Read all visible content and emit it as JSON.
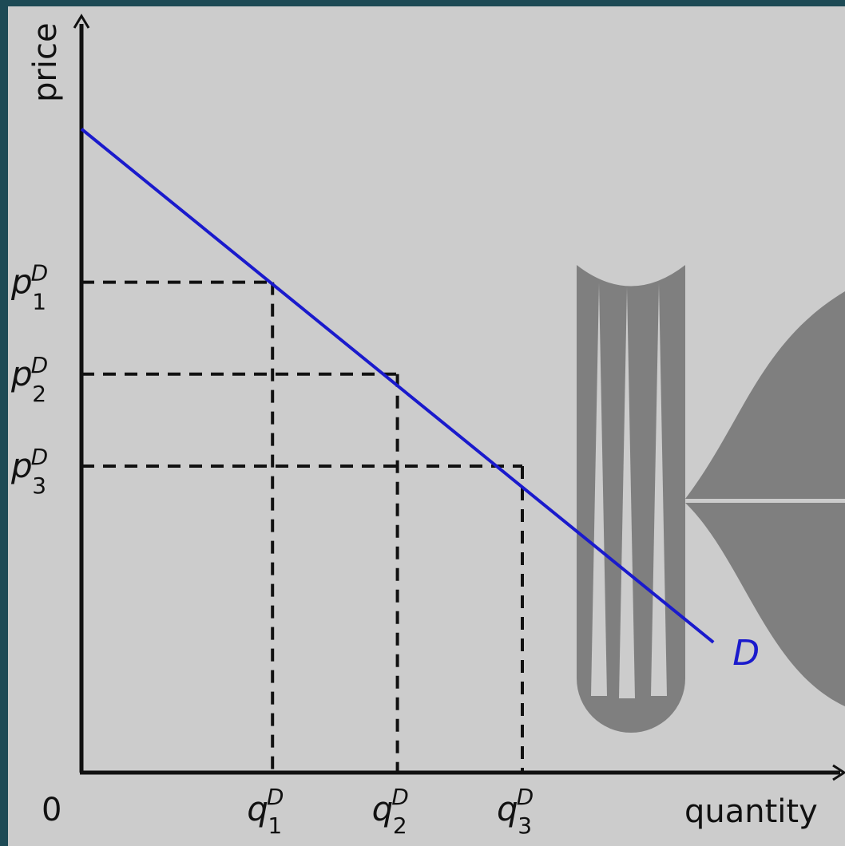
{
  "chart_data": {
    "type": "line",
    "xlabel": "quantity",
    "ylabel": "price",
    "origin_label": "0",
    "xlim": [
      0,
      1
    ],
    "ylim": [
      0,
      1
    ],
    "series": [
      {
        "name": "D",
        "x": [
          0,
          0.86
        ],
        "y": [
          0.84,
          0.17
        ],
        "color": "#1a1acc"
      }
    ],
    "reference_points": [
      {
        "x": 0.26,
        "y": 0.64,
        "x_label": {
          "base": "q",
          "sub": "1",
          "sup": "D"
        },
        "y_label": {
          "base": "p",
          "sub": "1",
          "sup": "D"
        }
      },
      {
        "x": 0.43,
        "y": 0.52,
        "x_label": {
          "base": "q",
          "sub": "2",
          "sup": "D"
        },
        "y_label": {
          "base": "p",
          "sub": "2",
          "sup": "D"
        }
      },
      {
        "x": 0.6,
        "y": 0.4,
        "x_label": {
          "base": "q",
          "sub": "3",
          "sup": "D"
        },
        "y_label": {
          "base": "p",
          "sub": "3",
          "sup": "D"
        }
      }
    ],
    "grid": false,
    "colors": {
      "background": "#cccccc",
      "frame": "#1d4a55",
      "axis": "#111111",
      "guide": "#111111",
      "watermark": "#7f7f7f"
    }
  }
}
